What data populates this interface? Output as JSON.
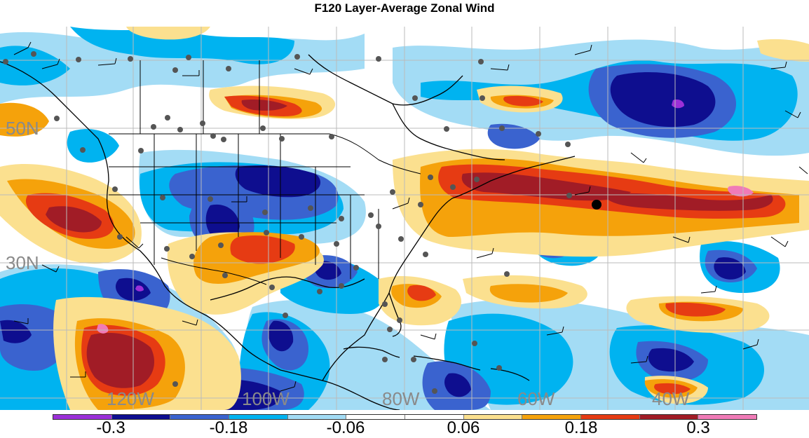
{
  "title": "F120 Layer-Average Zonal Wind",
  "latitude_labels": [
    "50N",
    "30N"
  ],
  "longitude_labels": [
    "120W",
    "100W",
    "80W",
    "60W",
    "40W"
  ],
  "colorbar": {
    "colors": [
      "#9b30d8",
      "#0e0e8f",
      "#3a63cf",
      "#00b3f0",
      "#a3dcf5",
      "#ffffff",
      "#ffffff",
      "#fbe08f",
      "#f5a20b",
      "#e63b13",
      "#a11c26",
      "#f07bb7"
    ],
    "tick_labels": [
      "-0.3",
      "-0.18",
      "-0.06",
      "0.06",
      "0.18",
      "0.3"
    ]
  },
  "colors": {
    "strong_negative": "#0e0e8f",
    "negative": "#3a63cf",
    "weak_negative": "#00b3f0",
    "slight_negative": "#a3dcf5",
    "slight_positive": "#fbe08f",
    "positive": "#f5a20b",
    "strong_positive": "#e63b13",
    "max_positive": "#a11c26",
    "grid": "#bbbbbb",
    "coastline": "#000000",
    "station": "#555555"
  }
}
